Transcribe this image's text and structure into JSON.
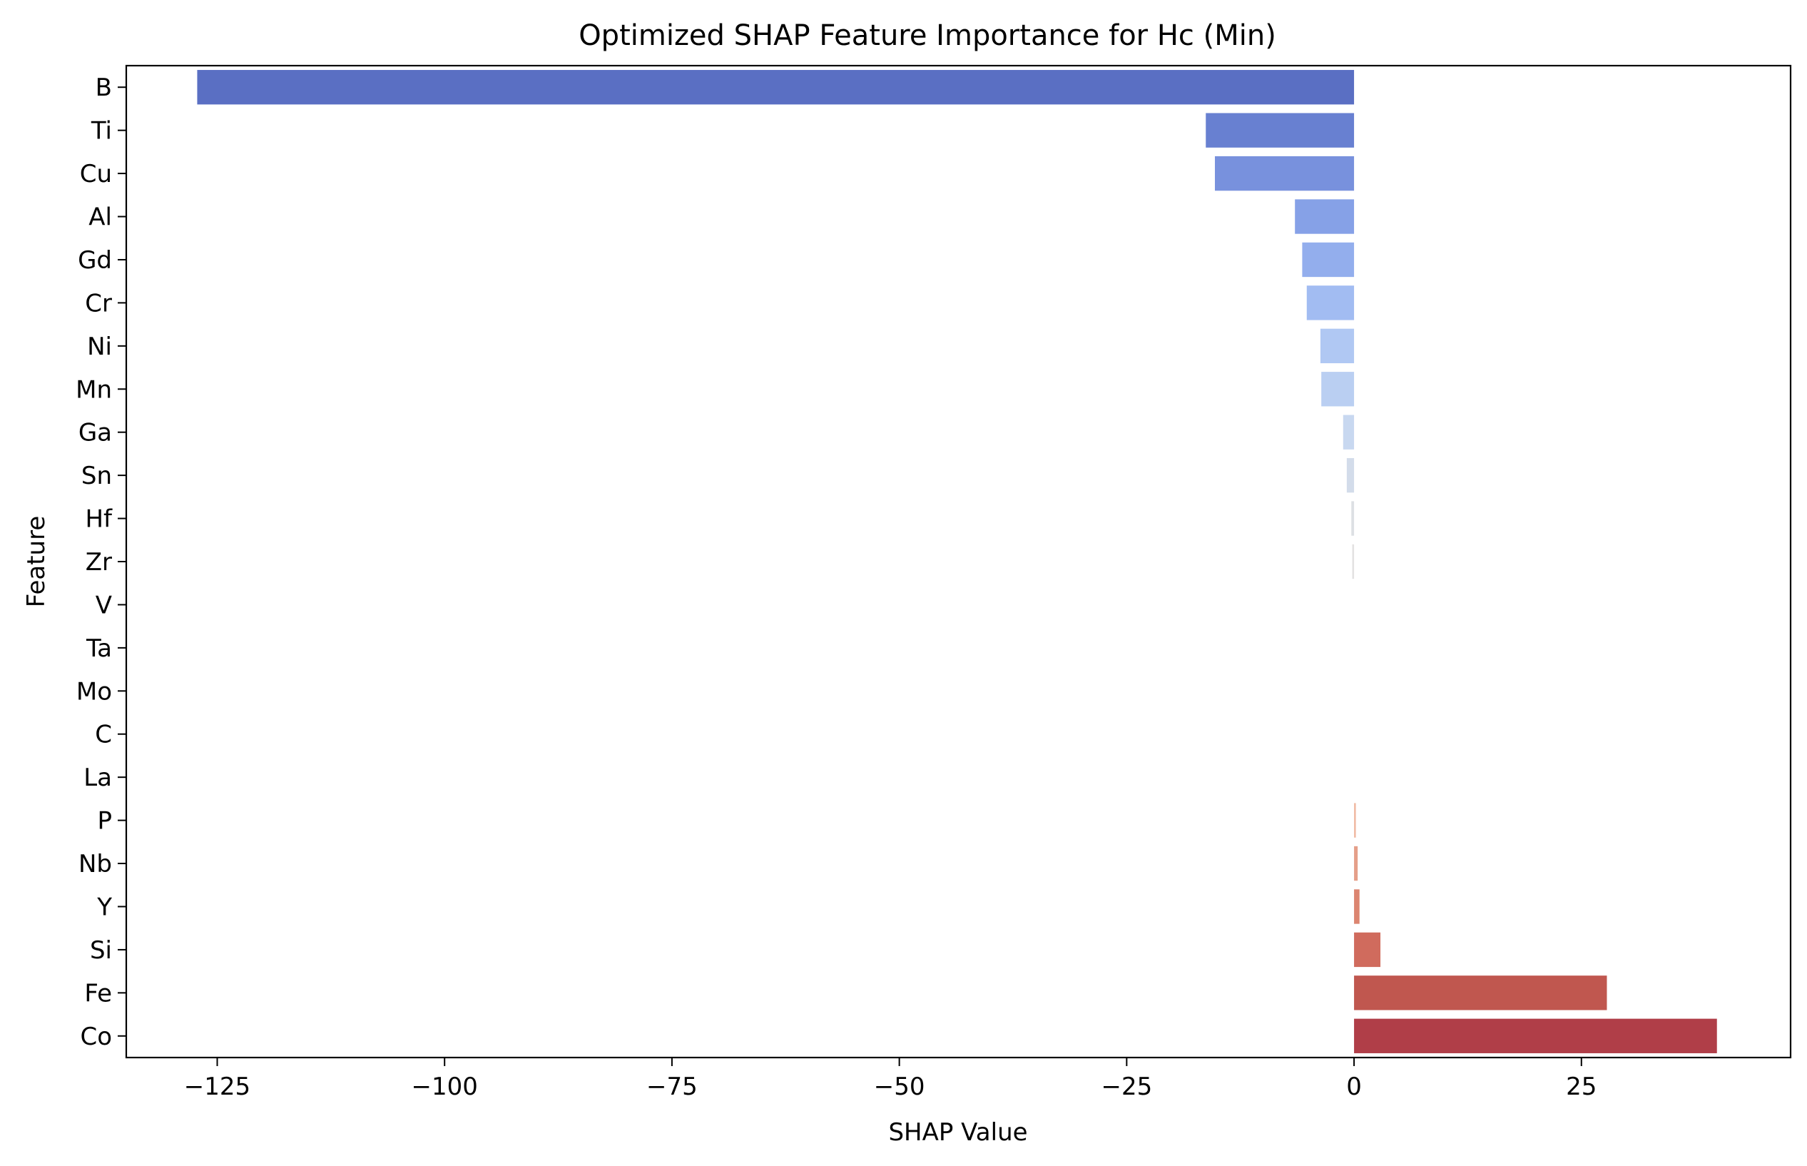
{
  "chart_data": {
    "type": "bar",
    "orientation": "horizontal",
    "title": "Optimized SHAP Feature Importance for Hc (Min)",
    "xlabel": "SHAP Value",
    "ylabel": "Feature",
    "xlim": [
      -135,
      48
    ],
    "xticks": [
      -125,
      -100,
      -75,
      -50,
      -25,
      0,
      25
    ],
    "xtick_labels": [
      "−125",
      "−100",
      "−75",
      "−50",
      "−25",
      "0",
      "25"
    ],
    "grid": false,
    "legend": "none",
    "categories": [
      "B",
      "Ti",
      "Cu",
      "Al",
      "Gd",
      "Cr",
      "Ni",
      "Mn",
      "Ga",
      "Sn",
      "Hf",
      "Zr",
      "V",
      "Ta",
      "Mo",
      "C",
      "La",
      "P",
      "Nb",
      "Y",
      "Si",
      "Fe",
      "Co"
    ],
    "values": [
      -127.2,
      -16.3,
      -15.3,
      -6.5,
      -5.7,
      -5.2,
      -3.7,
      -3.6,
      -1.2,
      -0.8,
      -0.3,
      -0.2,
      0,
      0,
      0,
      0,
      0,
      0.2,
      0.4,
      0.6,
      2.9,
      27.8,
      39.9
    ],
    "colors": [
      "#5a6fc3",
      "#6880d1",
      "#7891dd",
      "#86a1e7",
      "#93aeed",
      "#a2bcf2",
      "#b0c8f3",
      "#bacff2",
      "#c8d8f0",
      "#d3dcea",
      "#dde0e4",
      "#e3e2e2",
      "#e4e1de",
      "#e4e1de",
      "#e4e1de",
      "#e4e1de",
      "#e4e1de",
      "#f0b9a3",
      "#e59f89",
      "#dc8570",
      "#d06b5d",
      "#c0574f",
      "#b03e48"
    ]
  }
}
